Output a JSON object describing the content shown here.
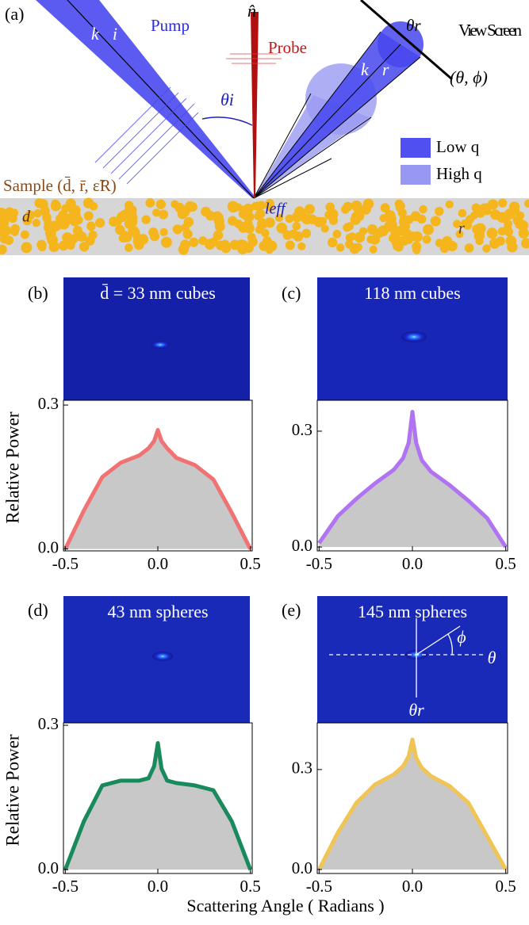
{
  "diagram": {
    "panel": "(a)",
    "pump": "Pump",
    "probe": "Probe",
    "normal": "n̂",
    "k_incident": "k⃗i",
    "theta_i": "θi",
    "k_reflected": "k⃗r",
    "theta_r": "θr",
    "screen": "View Screen",
    "screen_coords": "(θ, ϕ)",
    "legend": [
      "Low q",
      "High q"
    ],
    "sample": "Sample (d̄, r̄, ε̃R)",
    "d": "d",
    "l_eff": "leff",
    "r": "r"
  },
  "chart_data": [
    {
      "type": "area",
      "panel": "(b)",
      "image_label": "d̄ = 33 nm cubes",
      "ylabel": "Relative Power",
      "color": "#f07272",
      "fill": "#c8c8c8",
      "x": [
        -0.5,
        -0.4,
        -0.3,
        -0.2,
        -0.1,
        -0.05,
        -0.02,
        0,
        0.02,
        0.05,
        0.1,
        0.2,
        0.3,
        0.4,
        0.5
      ],
      "values": [
        0.0,
        0.08,
        0.15,
        0.18,
        0.195,
        0.21,
        0.225,
        0.248,
        0.225,
        0.21,
        0.19,
        0.175,
        0.145,
        0.075,
        0.0
      ],
      "xlim": [
        -0.51,
        0.51
      ],
      "ylim": [
        -0.004,
        0.31
      ],
      "xticks": [
        {
          "value": -0.5,
          "label": "-0.5"
        },
        {
          "value": 0,
          "label": "0.0"
        },
        {
          "value": 0.5,
          "label": "0.5"
        }
      ],
      "yticks": [
        {
          "value": 0,
          "label": "0.0"
        },
        {
          "value": 0.3,
          "label": "0.3"
        }
      ]
    },
    {
      "type": "area",
      "panel": "(c)",
      "image_label": "118 nm cubes",
      "color": "#b073f2",
      "fill": "#c8c8c8",
      "x": [
        -0.5,
        -0.4,
        -0.3,
        -0.2,
        -0.1,
        -0.05,
        -0.02,
        0,
        0.02,
        0.05,
        0.1,
        0.2,
        0.3,
        0.4,
        0.5
      ],
      "values": [
        0.01,
        0.08,
        0.125,
        0.165,
        0.2,
        0.23,
        0.27,
        0.35,
        0.27,
        0.225,
        0.195,
        0.16,
        0.12,
        0.075,
        0.0
      ],
      "xlim": [
        -0.51,
        0.51
      ],
      "ylim": [
        -0.01,
        0.38
      ],
      "xticks": [
        {
          "value": -0.5,
          "label": "-0.5"
        },
        {
          "value": 0,
          "label": "0.0"
        },
        {
          "value": 0.5,
          "label": "0.5"
        }
      ],
      "yticks": [
        {
          "value": 0,
          "label": "0.0"
        },
        {
          "value": 0.3,
          "label": "0.3"
        }
      ]
    },
    {
      "type": "area",
      "panel": "(d)",
      "image_label": "43 nm spheres",
      "ylabel": "Relative Power",
      "xlabel": "Scattering Angle ( Radians )",
      "color": "#188a5c",
      "fill": "#c8c8c8",
      "x": [
        -0.5,
        -0.4,
        -0.3,
        -0.2,
        -0.1,
        -0.05,
        -0.02,
        0,
        0.02,
        0.05,
        0.1,
        0.2,
        0.3,
        0.4,
        0.5
      ],
      "values": [
        0.0,
        0.1,
        0.175,
        0.185,
        0.185,
        0.19,
        0.215,
        0.263,
        0.21,
        0.185,
        0.18,
        0.175,
        0.165,
        0.1,
        0.0
      ],
      "xlim": [
        -0.51,
        0.51
      ],
      "ylim": [
        -0.008,
        0.305
      ],
      "xticks": [
        {
          "value": -0.5,
          "label": "-0.5"
        },
        {
          "value": 0,
          "label": "0.0"
        },
        {
          "value": 0.5,
          "label": "0.5"
        }
      ],
      "yticks": [
        {
          "value": 0,
          "label": "0.0"
        },
        {
          "value": 0.3,
          "label": "0.3"
        }
      ]
    },
    {
      "type": "area",
      "panel": "(e)",
      "image_label": "145 nm spheres",
      "annotations": [
        "ϕ",
        "θ",
        "θr"
      ],
      "color": "#f0c455",
      "fill": "#c8c8c8",
      "x": [
        -0.5,
        -0.4,
        -0.3,
        -0.2,
        -0.1,
        -0.05,
        -0.02,
        0,
        0.02,
        0.05,
        0.1,
        0.2,
        0.3,
        0.4,
        0.5
      ],
      "values": [
        0.0,
        0.11,
        0.2,
        0.255,
        0.285,
        0.31,
        0.34,
        0.39,
        0.335,
        0.305,
        0.28,
        0.25,
        0.2,
        0.1,
        0.0
      ],
      "xlim": [
        -0.51,
        0.51
      ],
      "ylim": [
        -0.012,
        0.44
      ],
      "xticks": [
        {
          "value": -0.5,
          "label": "-0.5"
        },
        {
          "value": 0,
          "label": "0.0"
        },
        {
          "value": 0.5,
          "label": "0.5"
        }
      ],
      "yticks": [
        {
          "value": 0,
          "label": "0.0"
        },
        {
          "value": 0.3,
          "label": "0.3"
        }
      ]
    }
  ]
}
